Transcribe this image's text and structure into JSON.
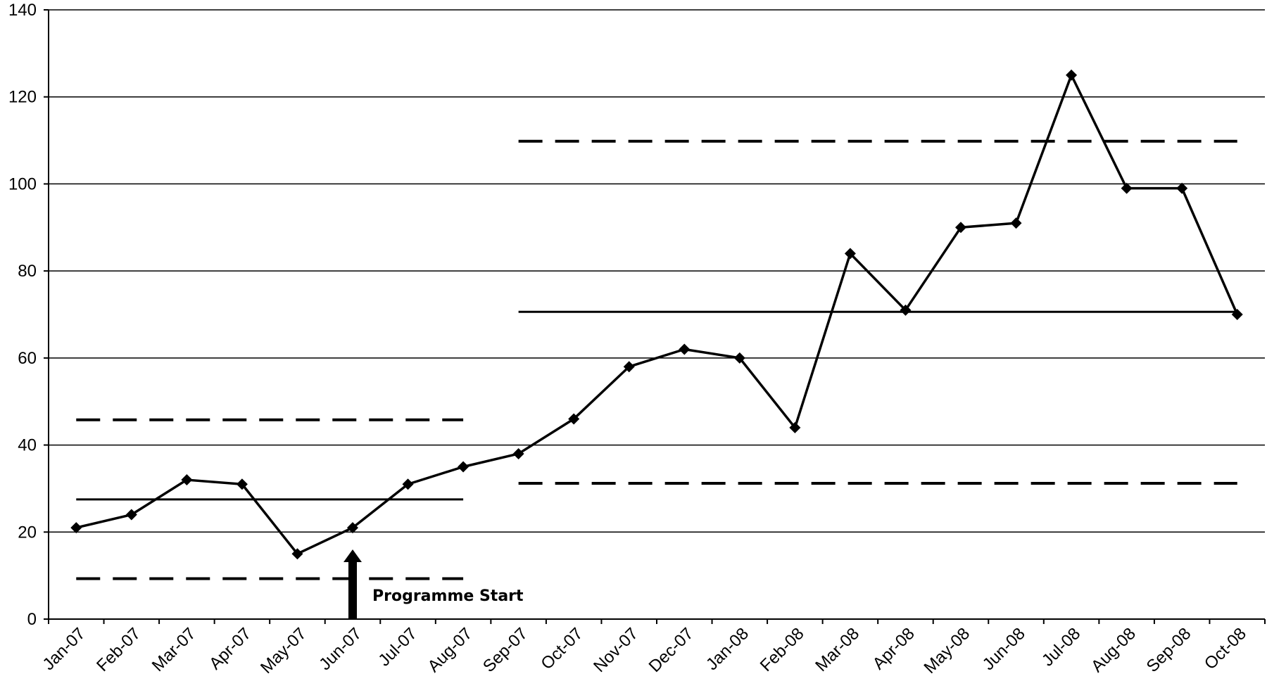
{
  "chart_data": {
    "type": "line",
    "title": "",
    "xlabel": "",
    "ylabel": "",
    "ylim": [
      0,
      140
    ],
    "yticks": [
      "0",
      "20",
      "40",
      "60",
      "80",
      "100",
      "120",
      "140"
    ],
    "grid": "horizontal",
    "categories": [
      "Jan-07",
      "Feb-07",
      "Mar-07",
      "Apr-07",
      "May-07",
      "Jun-07",
      "Jul-07",
      "Aug-07",
      "Sep-07",
      "Oct-07",
      "Nov-07",
      "Dec-07",
      "Jan-08",
      "Feb-08",
      "Mar-08",
      "Apr-08",
      "May-08",
      "Jun-08",
      "Jul-08",
      "Aug-08",
      "Sep-08",
      "Oct-08"
    ],
    "series": [
      {
        "values": [
          21,
          24,
          32,
          31,
          15,
          21,
          31,
          35,
          38,
          46,
          58,
          62,
          60,
          44,
          84,
          71,
          90,
          91,
          125,
          99,
          99,
          70
        ],
        "marker": "diamond",
        "color": "#000000"
      }
    ],
    "reference_lines": [
      {
        "style": "solid",
        "value": 27.5,
        "from": "Jan-07",
        "to": "Aug-07"
      },
      {
        "style": "dashed",
        "value": 45.8,
        "from": "Jan-07",
        "to": "Aug-07"
      },
      {
        "style": "dashed",
        "value": 9.3,
        "from": "Jan-07",
        "to": "Aug-07"
      },
      {
        "style": "solid",
        "value": 70.6,
        "from": "Sep-07",
        "to": "Oct-08"
      },
      {
        "style": "dashed",
        "value": 109.8,
        "from": "Sep-07",
        "to": "Oct-08"
      },
      {
        "style": "dashed",
        "value": 31.2,
        "from": "Sep-07",
        "to": "Oct-08"
      }
    ],
    "annotation": {
      "text": "Programme Start",
      "category": "Jun-07",
      "arrow": "up"
    }
  }
}
